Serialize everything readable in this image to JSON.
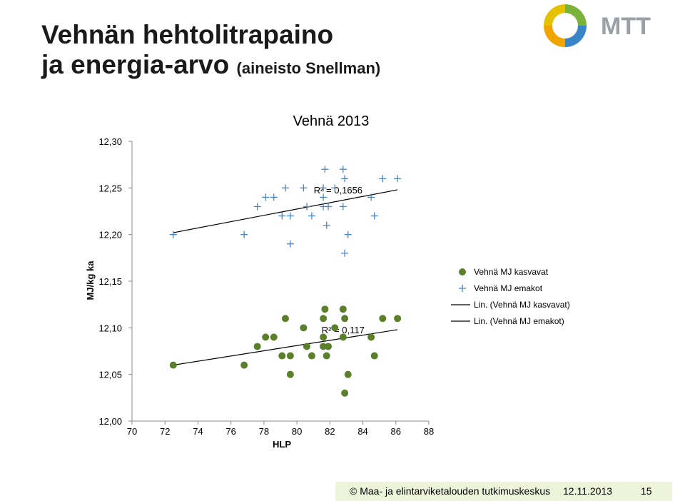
{
  "heading": {
    "line1": "Vehnän hehtolitrapaino",
    "line2": "ja energia-arvo",
    "line2_suffix": "(aineisto Snellman)"
  },
  "logo": {
    "text": "MTT"
  },
  "footer": {
    "copyright": "© Maa- ja elintarviketalouden tutkimuskeskus",
    "date": "12.11.2013",
    "page": "15"
  },
  "colors": {
    "green": "#5c7f2c",
    "blue": "#4a86c5",
    "logo_gray": "#9aa0a6",
    "footer_bg": "#eef4da"
  },
  "chart_data": {
    "type": "scatter",
    "title": "Vehnä 2013",
    "xlabel": "HLP",
    "ylabel": "MJ/kg ka",
    "xlim": [
      70,
      88
    ],
    "ylim": [
      12.0,
      12.3
    ],
    "xticks": [
      "70",
      "72",
      "74",
      "76",
      "78",
      "80",
      "82",
      "84",
      "86",
      "88"
    ],
    "yticks": [
      "12,00",
      "12,05",
      "12,10",
      "12,15",
      "12,20",
      "12,25",
      "12,30"
    ],
    "grid": false,
    "legend_position": "right",
    "series": [
      {
        "name": "Vehnä MJ kasvavat",
        "marker": "circle",
        "points": [
          [
            72.5,
            12.06
          ],
          [
            76.8,
            12.06
          ],
          [
            77.6,
            12.08
          ],
          [
            78.1,
            12.09
          ],
          [
            78.6,
            12.09
          ],
          [
            79.1,
            12.07
          ],
          [
            79.3,
            12.11
          ],
          [
            79.6,
            12.07
          ],
          [
            79.6,
            12.05
          ],
          [
            80.4,
            12.1
          ],
          [
            80.6,
            12.08
          ],
          [
            80.9,
            12.07
          ],
          [
            81.6,
            12.09
          ],
          [
            81.6,
            12.08
          ],
          [
            81.6,
            12.11
          ],
          [
            81.7,
            12.12
          ],
          [
            81.8,
            12.07
          ],
          [
            81.9,
            12.08
          ],
          [
            82.3,
            12.1
          ],
          [
            82.8,
            12.12
          ],
          [
            82.8,
            12.09
          ],
          [
            82.9,
            12.11
          ],
          [
            82.9,
            12.03
          ],
          [
            83.1,
            12.05
          ],
          [
            84.5,
            12.09
          ],
          [
            84.7,
            12.07
          ],
          [
            85.2,
            12.11
          ],
          [
            86.1,
            12.11
          ]
        ]
      },
      {
        "name": "Vehnä MJ emakot",
        "marker": "plus",
        "points": [
          [
            72.5,
            12.2
          ],
          [
            76.8,
            12.2
          ],
          [
            77.6,
            12.23
          ],
          [
            78.1,
            12.24
          ],
          [
            78.6,
            12.24
          ],
          [
            79.1,
            12.22
          ],
          [
            79.3,
            12.25
          ],
          [
            79.6,
            12.22
          ],
          [
            79.6,
            12.19
          ],
          [
            80.4,
            12.25
          ],
          [
            80.6,
            12.23
          ],
          [
            80.9,
            12.22
          ],
          [
            81.6,
            12.24
          ],
          [
            81.6,
            12.23
          ],
          [
            81.6,
            12.25
          ],
          [
            81.7,
            12.27
          ],
          [
            81.8,
            12.21
          ],
          [
            81.9,
            12.23
          ],
          [
            82.3,
            12.25
          ],
          [
            82.8,
            12.27
          ],
          [
            82.8,
            12.23
          ],
          [
            82.9,
            12.26
          ],
          [
            82.9,
            12.18
          ],
          [
            83.1,
            12.2
          ],
          [
            84.5,
            12.24
          ],
          [
            84.7,
            12.22
          ],
          [
            85.2,
            12.26
          ],
          [
            86.1,
            12.26
          ]
        ]
      }
    ],
    "trendlines": [
      {
        "name": "Lin. (Vehnä MJ kasvavat)",
        "x": [
          72.5,
          86.1
        ],
        "y": [
          12.06,
          12.098
        ],
        "r2_label": "R² = 0,117",
        "label_at": [
          82.8,
          12.098
        ]
      },
      {
        "name": "Lin. (Vehnä MJ emakot)",
        "x": [
          72.5,
          86.1
        ],
        "y": [
          12.202,
          12.248
        ],
        "r2_label": "R² = 0,1656",
        "label_at": [
          82.5,
          12.248
        ]
      }
    ]
  }
}
